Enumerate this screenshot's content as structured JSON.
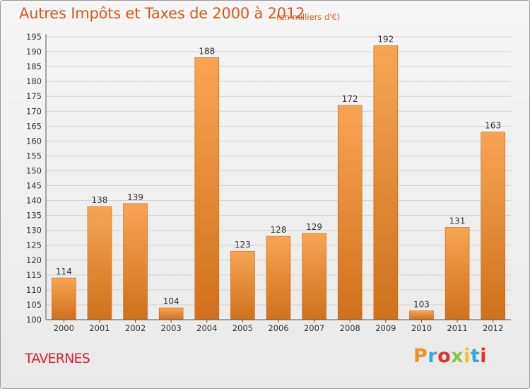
{
  "header": {
    "title": "Autres Impôts et Taxes de 2000 à 2012",
    "subtitle": "(en milliers d'€)"
  },
  "footer": {
    "commune": "TAVERNES",
    "logo_text": "Proxiti",
    "logo_colors": [
      "#f39221",
      "#3ba3dd",
      "#e2302e",
      "#8cc63f",
      "#f7c11e",
      "#3ba3dd",
      "#e2302e"
    ]
  },
  "chart_data": {
    "type": "bar",
    "title": "Autres Impôts et Taxes de 2000 à 2012",
    "subtitle": "(en milliers d'€)",
    "categories": [
      "2000",
      "2001",
      "2002",
      "2003",
      "2004",
      "2005",
      "2006",
      "2007",
      "2008",
      "2009",
      "2010",
      "2011",
      "2012"
    ],
    "values": [
      114,
      138,
      139,
      104,
      188,
      123,
      128,
      129,
      172,
      192,
      103,
      131,
      163
    ],
    "ylim": [
      100,
      195
    ],
    "yticks": [
      100,
      105,
      110,
      115,
      120,
      125,
      130,
      135,
      140,
      145,
      150,
      155,
      160,
      165,
      170,
      175,
      180,
      185,
      190,
      195
    ],
    "grid": true,
    "bar_color_top": "#f7a553",
    "bar_color_bottom": "#d0701a",
    "grid_color": "#d2d2d2"
  }
}
